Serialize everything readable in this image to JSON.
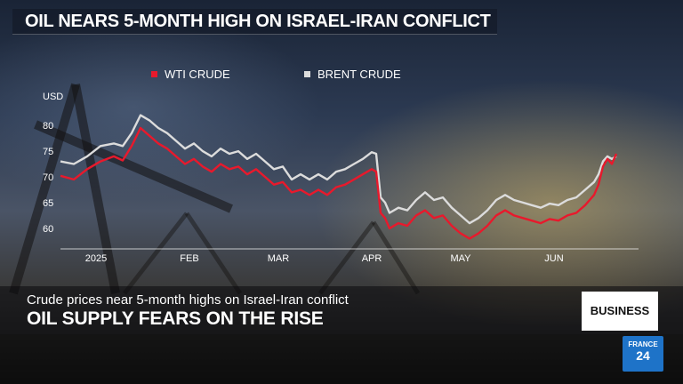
{
  "header": {
    "title": "OIL NEARS 5-MONTH HIGH ON ISRAEL-IRAN CONFLICT"
  },
  "lower_third": {
    "subtitle": "Crude prices near 5-month highs on Israel-Iran conflict",
    "headline": "OIL SUPPLY FEARS ON THE RISE",
    "section_label": "BUSINESS"
  },
  "logo": {
    "line1": "FRANCE",
    "line2": "24",
    "color": "#1e73c8"
  },
  "chart_data": {
    "type": "line",
    "ylabel": "USD",
    "ylim": [
      56,
      84
    ],
    "yticks": [
      60,
      65,
      70,
      75,
      80
    ],
    "xticks": [
      {
        "label": "2025",
        "t": 8
      },
      {
        "label": "FEB",
        "t": 29
      },
      {
        "label": "MAR",
        "t": 49
      },
      {
        "label": "APR",
        "t": 70
      },
      {
        "label": "MAY",
        "t": 90
      },
      {
        "label": "JUN",
        "t": 111
      }
    ],
    "grid": false,
    "legend_position": "top",
    "series": [
      {
        "name": "WTI CRUDE",
        "color": "#e8192c",
        "points": [
          [
            0,
            70.2
          ],
          [
            3,
            69.5
          ],
          [
            6,
            71.5
          ],
          [
            9,
            73.0
          ],
          [
            12,
            74.0
          ],
          [
            14,
            73.2
          ],
          [
            16,
            76.0
          ],
          [
            18,
            79.5
          ],
          [
            20,
            78.0
          ],
          [
            22,
            76.5
          ],
          [
            24,
            75.5
          ],
          [
            26,
            74.0
          ],
          [
            28,
            72.5
          ],
          [
            30,
            73.5
          ],
          [
            32,
            72.0
          ],
          [
            34,
            71.0
          ],
          [
            36,
            72.5
          ],
          [
            38,
            71.5
          ],
          [
            40,
            72.0
          ],
          [
            42,
            70.5
          ],
          [
            44,
            71.5
          ],
          [
            46,
            70.0
          ],
          [
            48,
            68.5
          ],
          [
            50,
            69.0
          ],
          [
            52,
            67.0
          ],
          [
            54,
            67.5
          ],
          [
            56,
            66.5
          ],
          [
            58,
            67.5
          ],
          [
            60,
            66.5
          ],
          [
            62,
            68.0
          ],
          [
            64,
            68.5
          ],
          [
            66,
            69.5
          ],
          [
            68,
            70.5
          ],
          [
            70,
            71.5
          ],
          [
            71,
            71.0
          ],
          [
            72,
            63.0
          ],
          [
            73,
            62.0
          ],
          [
            74,
            60.0
          ],
          [
            76,
            61.0
          ],
          [
            78,
            60.5
          ],
          [
            80,
            62.5
          ],
          [
            82,
            63.5
          ],
          [
            84,
            62.0
          ],
          [
            86,
            62.5
          ],
          [
            88,
            60.5
          ],
          [
            90,
            59.0
          ],
          [
            92,
            58.0
          ],
          [
            94,
            59.0
          ],
          [
            96,
            60.5
          ],
          [
            98,
            62.5
          ],
          [
            100,
            63.5
          ],
          [
            102,
            62.5
          ],
          [
            104,
            62.0
          ],
          [
            106,
            61.5
          ],
          [
            108,
            61.0
          ],
          [
            110,
            61.8
          ],
          [
            112,
            61.5
          ],
          [
            114,
            62.5
          ],
          [
            116,
            63.0
          ],
          [
            118,
            64.5
          ],
          [
            120,
            66.5
          ],
          [
            121,
            68.5
          ],
          [
            122,
            72.0
          ],
          [
            123,
            73.5
          ],
          [
            124,
            72.5
          ],
          [
            125,
            74.5
          ]
        ]
      },
      {
        "name": "BRENT CRUDE",
        "color": "#dcdcdc",
        "points": [
          [
            0,
            73.0
          ],
          [
            3,
            72.5
          ],
          [
            6,
            74.0
          ],
          [
            9,
            76.0
          ],
          [
            12,
            76.5
          ],
          [
            14,
            76.0
          ],
          [
            16,
            78.5
          ],
          [
            18,
            82.0
          ],
          [
            20,
            81.0
          ],
          [
            22,
            79.5
          ],
          [
            24,
            78.5
          ],
          [
            26,
            77.0
          ],
          [
            28,
            75.5
          ],
          [
            30,
            76.5
          ],
          [
            32,
            75.0
          ],
          [
            34,
            74.0
          ],
          [
            36,
            75.5
          ],
          [
            38,
            74.5
          ],
          [
            40,
            75.0
          ],
          [
            42,
            73.5
          ],
          [
            44,
            74.5
          ],
          [
            46,
            73.0
          ],
          [
            48,
            71.5
          ],
          [
            50,
            72.0
          ],
          [
            52,
            69.5
          ],
          [
            54,
            70.5
          ],
          [
            56,
            69.5
          ],
          [
            58,
            70.5
          ],
          [
            60,
            69.5
          ],
          [
            62,
            71.0
          ],
          [
            64,
            71.5
          ],
          [
            66,
            72.5
          ],
          [
            68,
            73.5
          ],
          [
            70,
            74.8
          ],
          [
            71,
            74.5
          ],
          [
            72,
            66.0
          ],
          [
            73,
            65.0
          ],
          [
            74,
            63.0
          ],
          [
            76,
            64.0
          ],
          [
            78,
            63.5
          ],
          [
            80,
            65.5
          ],
          [
            82,
            67.0
          ],
          [
            84,
            65.5
          ],
          [
            86,
            66.0
          ],
          [
            88,
            64.0
          ],
          [
            90,
            62.5
          ],
          [
            92,
            61.0
          ],
          [
            94,
            62.0
          ],
          [
            96,
            63.5
          ],
          [
            98,
            65.5
          ],
          [
            100,
            66.5
          ],
          [
            102,
            65.5
          ],
          [
            104,
            65.0
          ],
          [
            106,
            64.5
          ],
          [
            108,
            64.0
          ],
          [
            110,
            64.8
          ],
          [
            112,
            64.5
          ],
          [
            114,
            65.5
          ],
          [
            116,
            66.0
          ],
          [
            118,
            67.5
          ],
          [
            120,
            69.0
          ],
          [
            121,
            70.5
          ],
          [
            122,
            73.0
          ],
          [
            123,
            74.0
          ],
          [
            124,
            73.5
          ],
          [
            125,
            74.0
          ]
        ]
      }
    ],
    "t_range": [
      0,
      130
    ]
  }
}
